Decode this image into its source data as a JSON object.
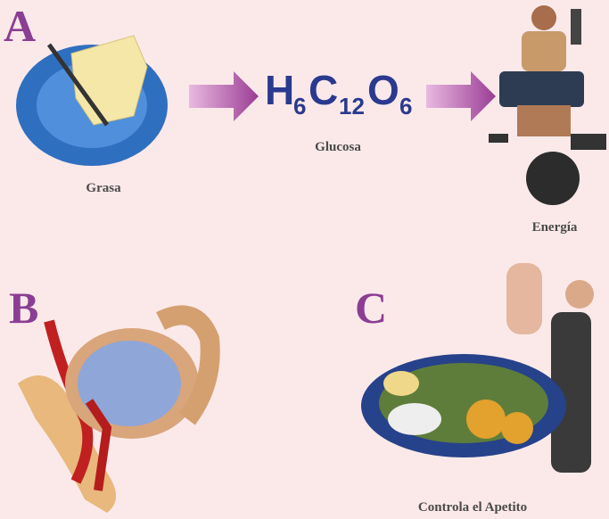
{
  "panels": {
    "a": {
      "letter": "A",
      "labels": {
        "fat": "Grasa",
        "glucose": "Glucosa",
        "energy": "Energía"
      },
      "formula": [
        {
          "symbol": "H",
          "sub": "6"
        },
        {
          "symbol": "C",
          "sub": "12"
        },
        {
          "symbol": "O",
          "sub": "6"
        }
      ]
    },
    "b": {
      "letter": "B"
    },
    "c": {
      "letter": "C",
      "label": "Controla el Apetito"
    }
  }
}
